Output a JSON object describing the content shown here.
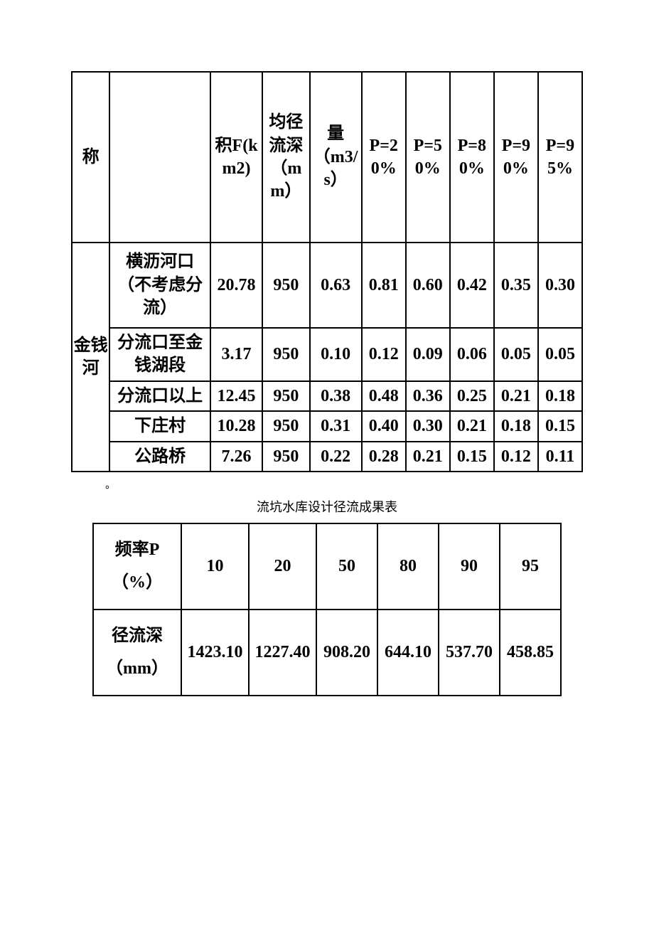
{
  "table1": {
    "header": {
      "c0": "称",
      "c1": "",
      "c2": "积F(km2)",
      "c3": "均径流深（mm）",
      "c4": "量（m3/s）",
      "c5": "P=20%",
      "c6": "P=50%",
      "c7": "P=80%",
      "c8": "P=90%",
      "c9": "P=95%"
    },
    "group_label": "金钱河",
    "rows": [
      {
        "name": "横沥河口（不考虑分流）",
        "area": "20.78",
        "depth": "950",
        "q": "0.63",
        "p20": "0.81",
        "p50": "0.60",
        "p80": "0.42",
        "p90": "0.35",
        "p95": "0.30"
      },
      {
        "name": "分流口至金钱湖段",
        "area": "3.17",
        "depth": "950",
        "q": "0.10",
        "p20": "0.12",
        "p50": "0.09",
        "p80": "0.06",
        "p90": "0.05",
        "p95": "0.05"
      },
      {
        "name": "分流口以上",
        "area": "12.45",
        "depth": "950",
        "q": "0.38",
        "p20": "0.48",
        "p50": "0.36",
        "p80": "0.25",
        "p90": "0.21",
        "p95": "0.18"
      },
      {
        "name": "下庄村",
        "area": "10.28",
        "depth": "950",
        "q": "0.31",
        "p20": "0.40",
        "p50": "0.30",
        "p80": "0.21",
        "p90": "0.18",
        "p95": "0.15"
      },
      {
        "name": "公路桥",
        "area": "7.26",
        "depth": "950",
        "q": "0.22",
        "p20": "0.28",
        "p50": "0.21",
        "p80": "0.15",
        "p90": "0.12",
        "p95": "0.11"
      }
    ],
    "footnote": "。"
  },
  "table2": {
    "caption": "流坑水库设计径流成果表",
    "header_label": "频率P（%）",
    "header_vals": [
      "10",
      "20",
      "50",
      "80",
      "90",
      "95"
    ],
    "row1_label": "径流深（mm）",
    "row1_vals": [
      "1423.10",
      "1227.40",
      "908.20",
      "644.10",
      "537.70",
      "458.85"
    ]
  },
  "style": {
    "background_color": "#ffffff",
    "border_color": "#000000",
    "text_color": "#000000",
    "font_family": "SimSun",
    "table1_fontsize": 24,
    "table2_fontsize": 24,
    "caption_fontsize": 18,
    "t1_col_widths": [
      48,
      128,
      66,
      60,
      66,
      56,
      56,
      56,
      56,
      56
    ],
    "t2_col_widths": [
      124,
      95,
      95,
      86,
      86,
      86,
      86
    ]
  }
}
